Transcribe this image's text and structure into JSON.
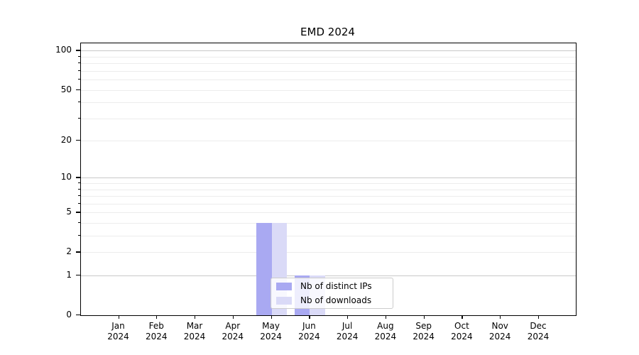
{
  "figure": {
    "background": "#ffffff"
  },
  "chart_data": {
    "type": "bar",
    "title": "EMD 2024",
    "categories": [
      "Jan 2024",
      "Feb 2024",
      "Mar 2024",
      "Apr 2024",
      "May 2024",
      "Jun 2024",
      "Jul 2024",
      "Aug 2024",
      "Sep 2024",
      "Oct 2024",
      "Nov 2024",
      "Dec 2024"
    ],
    "series": [
      {
        "name": "Nb of distinct IPs",
        "color": "#a9a9f2",
        "values": [
          0,
          0,
          0,
          0,
          4,
          1,
          0,
          0,
          0,
          0,
          0,
          0
        ]
      },
      {
        "name": "Nb of downloads",
        "color": "#dadaf7",
        "values": [
          0,
          0,
          0,
          0,
          4,
          1,
          0,
          0,
          0,
          0,
          0,
          0
        ]
      }
    ],
    "xlabel": "",
    "ylabel": "",
    "yscale": "log1p",
    "ylim": [
      0,
      114
    ],
    "ytick_values": [
      0,
      1,
      2,
      5,
      10,
      20,
      50,
      100
    ],
    "ytick_labels": [
      "0",
      "1",
      "2",
      "5",
      "10",
      "20",
      "50",
      "100"
    ],
    "minor_grid_values": [
      2,
      3,
      4,
      5,
      6,
      7,
      8,
      9,
      20,
      30,
      40,
      50,
      60,
      70,
      80,
      90
    ],
    "major_grid_values": [
      1,
      10,
      100
    ],
    "grid": true,
    "legend_position": "lower center-left inside plot",
    "colors": {
      "major_grid": "#c8c8c8",
      "minor_grid": "#ececec",
      "spine": "#000000",
      "tick": "#000000",
      "text": "#000000",
      "legend_border": "#cccccc"
    }
  }
}
